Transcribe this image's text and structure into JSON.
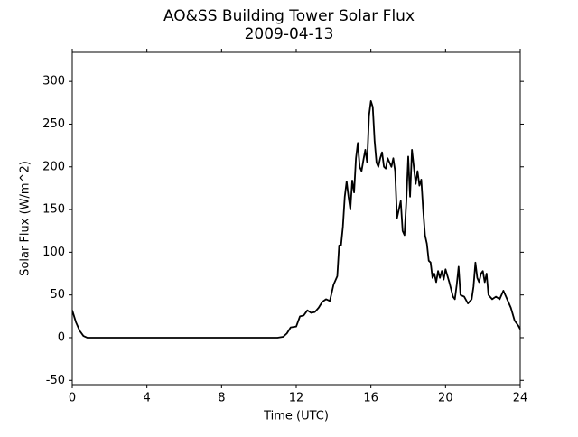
{
  "chart_data": {
    "type": "line",
    "title": "AO&SS Building Tower Solar Flux",
    "subtitle": "2009-04-13",
    "x_label": "Time (UTC)",
    "y_label": "Solar Flux (W/m^2)",
    "xlim": [
      0,
      24
    ],
    "ylim": [
      -55,
      334
    ],
    "xticks": [
      0,
      4,
      8,
      12,
      16,
      20,
      24
    ],
    "yticks": [
      -50,
      0,
      50,
      100,
      150,
      200,
      250,
      300
    ],
    "grid": false,
    "series": [
      {
        "color": "#000000",
        "x": [
          0,
          0.2,
          0.4,
          0.6,
          0.8,
          1,
          2,
          3,
          4,
          5,
          6,
          7,
          8,
          9,
          10,
          11,
          11.3,
          11.5,
          11.7,
          12,
          12.2,
          12.4,
          12.6,
          12.8,
          13,
          13.2,
          13.4,
          13.6,
          13.8,
          14,
          14.2,
          14.3,
          14.4,
          14.5,
          14.6,
          14.7,
          14.8,
          14.9,
          15,
          15.1,
          15.2,
          15.3,
          15.4,
          15.5,
          15.6,
          15.7,
          15.8,
          15.9,
          16,
          16.1,
          16.2,
          16.3,
          16.4,
          16.5,
          16.6,
          16.7,
          16.8,
          16.9,
          17,
          17.1,
          17.2,
          17.3,
          17.4,
          17.5,
          17.6,
          17.7,
          17.8,
          17.9,
          18,
          18.1,
          18.2,
          18.3,
          18.4,
          18.5,
          18.6,
          18.7,
          18.8,
          18.9,
          19,
          19.1,
          19.2,
          19.3,
          19.4,
          19.5,
          19.6,
          19.7,
          19.8,
          19.9,
          20,
          20.2,
          20.4,
          20.5,
          20.6,
          20.7,
          20.8,
          21,
          21.2,
          21.4,
          21.5,
          21.6,
          21.7,
          21.8,
          21.9,
          22,
          22.1,
          22.2,
          22.3,
          22.5,
          22.7,
          22.9,
          23,
          23.1,
          23.3,
          23.5,
          23.7,
          23.9,
          24
        ],
        "values": [
          32,
          18,
          8,
          2,
          0,
          0,
          0,
          0,
          0,
          0,
          0,
          0,
          0,
          0,
          0,
          0,
          1,
          5,
          12,
          13,
          25,
          26,
          32,
          29,
          30,
          35,
          42,
          45,
          43,
          62,
          72,
          108,
          108,
          130,
          165,
          183,
          165,
          150,
          184,
          170,
          210,
          228,
          200,
          195,
          208,
          220,
          205,
          260,
          277,
          270,
          230,
          205,
          200,
          210,
          217,
          200,
          198,
          210,
          205,
          200,
          210,
          195,
          140,
          150,
          160,
          125,
          120,
          160,
          212,
          165,
          220,
          200,
          180,
          195,
          178,
          185,
          150,
          120,
          110,
          90,
          88,
          70,
          75,
          65,
          78,
          70,
          78,
          68,
          80,
          65,
          48,
          45,
          62,
          83,
          50,
          48,
          40,
          45,
          60,
          88,
          70,
          65,
          75,
          78,
          65,
          75,
          50,
          45,
          48,
          45,
          50,
          55,
          45,
          35,
          20,
          14,
          10
        ]
      }
    ]
  }
}
